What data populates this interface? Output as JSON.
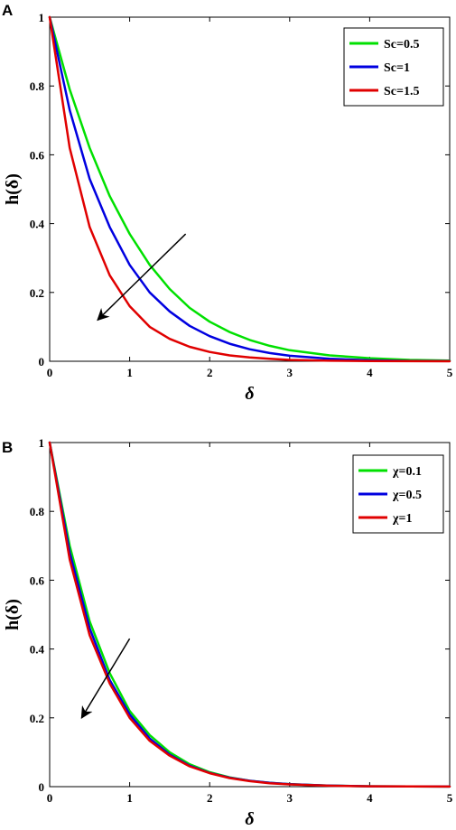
{
  "chart_data": [
    {
      "panel": "A",
      "type": "line",
      "xlabel": "δ",
      "ylabel": "h(δ)",
      "xlim": [
        0,
        5
      ],
      "ylim": [
        0,
        1
      ],
      "xticks": [
        "0",
        "1",
        "2",
        "3",
        "4",
        "5"
      ],
      "yticks": [
        "0",
        "0.2",
        "0.4",
        "0.6",
        "0.8",
        "1"
      ],
      "legend_position": "top-right",
      "grid": false,
      "series": [
        {
          "name": "Sc=0.5",
          "color": "#00e000",
          "x": [
            0,
            0.25,
            0.5,
            0.75,
            1,
            1.25,
            1.5,
            1.75,
            2,
            2.25,
            2.5,
            2.75,
            3,
            3.5,
            4,
            4.5,
            5
          ],
          "y": [
            1,
            0.79,
            0.62,
            0.48,
            0.37,
            0.28,
            0.21,
            0.155,
            0.115,
            0.085,
            0.062,
            0.045,
            0.032,
            0.017,
            0.009,
            0.004,
            0.002
          ]
        },
        {
          "name": "Sc=1",
          "color": "#0000e0",
          "x": [
            0,
            0.25,
            0.5,
            0.75,
            1,
            1.25,
            1.5,
            1.75,
            2,
            2.25,
            2.5,
            2.75,
            3,
            3.5,
            4,
            4.5,
            5
          ],
          "y": [
            1,
            0.73,
            0.53,
            0.39,
            0.28,
            0.2,
            0.145,
            0.103,
            0.073,
            0.051,
            0.035,
            0.024,
            0.016,
            0.007,
            0.003,
            0.001,
            0.0005
          ]
        },
        {
          "name": "Sc=1.5",
          "color": "#e00000",
          "x": [
            0,
            0.25,
            0.5,
            0.75,
            1,
            1.25,
            1.5,
            1.75,
            2,
            2.25,
            2.5,
            2.75,
            3,
            3.5,
            4,
            4.5,
            5
          ],
          "y": [
            1,
            0.62,
            0.39,
            0.25,
            0.16,
            0.1,
            0.065,
            0.042,
            0.027,
            0.017,
            0.011,
            0.007,
            0.004,
            0.0015,
            0.0005,
            0.0002,
            0.0001
          ]
        }
      ],
      "annotations": [
        {
          "type": "arrow",
          "from": [
            1.7,
            0.37
          ],
          "to": [
            0.6,
            0.12
          ]
        }
      ]
    },
    {
      "panel": "B",
      "type": "line",
      "xlabel": "δ",
      "ylabel": "h(δ)",
      "xlim": [
        0,
        5
      ],
      "ylim": [
        0,
        1
      ],
      "xticks": [
        "0",
        "1",
        "2",
        "3",
        "4",
        "5"
      ],
      "yticks": [
        "0",
        "0.2",
        "0.4",
        "0.6",
        "0.8",
        "1"
      ],
      "legend_position": "top-right",
      "grid": false,
      "series": [
        {
          "name": "χ=0.1",
          "color": "#00e000",
          "x": [
            0,
            0.25,
            0.5,
            0.75,
            1,
            1.25,
            1.5,
            1.75,
            2,
            2.25,
            2.5,
            2.75,
            3,
            3.5,
            4,
            4.5,
            5
          ],
          "y": [
            1,
            0.7,
            0.48,
            0.33,
            0.22,
            0.15,
            0.1,
            0.065,
            0.042,
            0.027,
            0.017,
            0.011,
            0.007,
            0.003,
            0.001,
            0.0005,
            0.0002
          ]
        },
        {
          "name": "χ=0.5",
          "color": "#0000e0",
          "x": [
            0,
            0.25,
            0.5,
            0.75,
            1,
            1.25,
            1.5,
            1.75,
            2,
            2.25,
            2.5,
            2.75,
            3,
            3.5,
            4,
            4.5,
            5
          ],
          "y": [
            1,
            0.68,
            0.46,
            0.31,
            0.21,
            0.14,
            0.093,
            0.061,
            0.04,
            0.026,
            0.017,
            0.011,
            0.007,
            0.003,
            0.001,
            0.0005,
            0.0002
          ]
        },
        {
          "name": "χ=1",
          "color": "#e00000",
          "x": [
            0,
            0.25,
            0.5,
            0.75,
            1,
            1.25,
            1.5,
            1.75,
            2,
            2.25,
            2.5,
            2.75,
            3,
            3.5,
            4,
            4.5,
            5
          ],
          "y": [
            1,
            0.66,
            0.44,
            0.3,
            0.2,
            0.133,
            0.09,
            0.059,
            0.039,
            0.025,
            0.016,
            0.01,
            0.0065,
            0.0025,
            0.001,
            0.0004,
            0.0002
          ]
        }
      ],
      "annotations": [
        {
          "type": "arrow",
          "from": [
            1.0,
            0.43
          ],
          "to": [
            0.4,
            0.2
          ]
        }
      ]
    }
  ]
}
